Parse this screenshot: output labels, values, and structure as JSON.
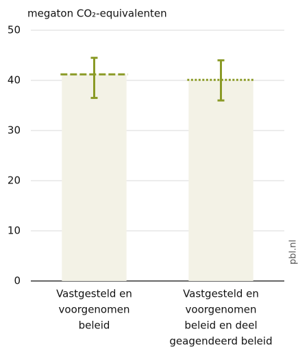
{
  "chart_data": {
    "type": "bar",
    "ylabel": "megaton CO₂-equivalenten",
    "categories": [
      [
        "Vastgesteld en",
        "voorgenomen",
        "beleid"
      ],
      [
        "Vastgesteld en",
        "voorgenomen",
        "beleid en deel",
        "geagendeerd beleid"
      ]
    ],
    "values": [
      41.2,
      40.1
    ],
    "error_range": [
      [
        36.5,
        44.5
      ],
      [
        36,
        44
      ]
    ],
    "line_styles": [
      "dashed",
      "dotted"
    ],
    "color": "#f3f2e6",
    "line_color": "#8a9a26",
    "ylim": [
      0,
      50
    ],
    "yticks": [
      0,
      10,
      20,
      30,
      40,
      50
    ],
    "grid": true,
    "source": "pbl.nl"
  }
}
